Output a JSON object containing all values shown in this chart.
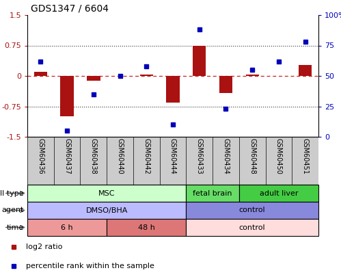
{
  "title": "GDS1347 / 6604",
  "samples": [
    "GSM60436",
    "GSM60437",
    "GSM60438",
    "GSM60440",
    "GSM60442",
    "GSM60444",
    "GSM60433",
    "GSM60434",
    "GSM60448",
    "GSM60450",
    "GSM60451"
  ],
  "log2_ratio": [
    0.1,
    -1.0,
    -0.12,
    0.0,
    0.03,
    -0.65,
    0.75,
    -0.42,
    0.03,
    0.0,
    0.27
  ],
  "pct_rank": [
    62,
    5,
    35,
    50,
    58,
    10,
    88,
    23,
    55,
    62,
    78
  ],
  "ylim_left": [
    -1.5,
    1.5
  ],
  "yticks_left": [
    -1.5,
    -0.75,
    0.0,
    0.75,
    1.5
  ],
  "ytick_labels_left": [
    "-1.5",
    "-0.75",
    "0",
    "0.75",
    "1.5"
  ],
  "ylim_right": [
    0,
    100
  ],
  "yticks_right": [
    0,
    25,
    50,
    75,
    100
  ],
  "ytick_labels_right": [
    "0",
    "25",
    "50",
    "75",
    "100%"
  ],
  "bar_color": "#aa1111",
  "dot_color": "#0000bb",
  "hline_color": "#cc2222",
  "dotted_line_color": "#333333",
  "cell_type_rows": [
    {
      "label": "MSC",
      "start": 0,
      "end": 6,
      "color": "#ccffcc"
    },
    {
      "label": "fetal brain",
      "start": 6,
      "end": 8,
      "color": "#66dd66"
    },
    {
      "label": "adult liver",
      "start": 8,
      "end": 11,
      "color": "#44cc44"
    }
  ],
  "agent_rows": [
    {
      "label": "DMSO/BHA",
      "start": 0,
      "end": 6,
      "color": "#bbbbff"
    },
    {
      "label": "control",
      "start": 6,
      "end": 11,
      "color": "#8888dd"
    }
  ],
  "time_rows": [
    {
      "label": "6 h",
      "start": 0,
      "end": 3,
      "color": "#ee9999"
    },
    {
      "label": "48 h",
      "start": 3,
      "end": 6,
      "color": "#dd7777"
    },
    {
      "label": "control",
      "start": 6,
      "end": 11,
      "color": "#ffdddd"
    }
  ],
  "row_labels": [
    "cell type",
    "agent",
    "time"
  ],
  "bar_width": 0.5,
  "tick_bg_color": "#cccccc",
  "tick_line_color": "#999999"
}
